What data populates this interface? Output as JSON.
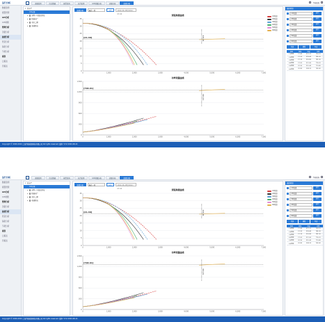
{
  "app": {
    "brand": "运行分析",
    "user": "华能能源"
  },
  "tabs": [
    "流量监测",
    "历史数据",
    "报警查询",
    "压力监测",
    "GIS地图分析",
    "流量分析",
    "曲线分析"
  ],
  "active_tab": 6,
  "sidebar": [
    {
      "label": "数据监测",
      "group": false
    },
    {
      "label": "报警管理",
      "group": false
    },
    {
      "label": "GIS分析",
      "group": true
    },
    {
      "label": "GIS地图",
      "group": false
    },
    {
      "label": "管网分析",
      "group": true
    },
    {
      "label": "流量分析",
      "group": false
    },
    {
      "label": "曲线分析",
      "group": true
    },
    {
      "label": "管道分析",
      "group": false
    },
    {
      "label": "漏损分析",
      "group": false
    },
    {
      "label": "节能分析",
      "group": false
    },
    {
      "label": "报表",
      "group": true
    },
    {
      "label": "日报表",
      "group": false
    },
    {
      "label": "月报表",
      "group": false
    }
  ],
  "tree": [
    {
      "label": "总水厂",
      "level": 0,
      "tw": "▾",
      "sel": false,
      "chk": false
    },
    {
      "label": "1#水源",
      "level": 1,
      "tw": "",
      "sel": true,
      "chk": false
    },
    {
      "label": "光明一号加压泵站",
      "level": 1,
      "tw": "▸",
      "sel": false,
      "chk": true
    },
    {
      "label": "新城水厂",
      "level": 1,
      "tw": "▸",
      "sel": false,
      "chk": true
    },
    {
      "label": "东区二期",
      "level": 1,
      "tw": "▸",
      "sel": false,
      "chk": true
    },
    {
      "label": "老城泵站",
      "level": 1,
      "tw": "▸",
      "sel": false,
      "chk": true
    }
  ],
  "toolbar": {
    "query": "曲线分析",
    "select_value": "最近一周",
    "compare": "对比",
    "date_range": "2022-06-28至2022-07-04"
  },
  "chart1": {
    "title": "流程泵能曲线",
    "label_left": "[21.40]",
    "label_right": "321.21",
    "x_ticks": [
      "0",
      "1,000",
      "2,000",
      "3,000",
      "4,000",
      "5,000",
      "6,000",
      "7,000"
    ],
    "y_ticks": [
      "35",
      "30",
      "25",
      "20",
      "15",
      "10",
      "5",
      "0"
    ]
  },
  "chart2": {
    "title": "功率流量曲线",
    "label_left": "[790.91]",
    "label_right": "321.21",
    "x_ticks": [
      "0",
      "1,000",
      "2,000",
      "3,000",
      "4,000",
      "5,000",
      "6,000",
      "7,000"
    ],
    "y_ticks": [
      "1,500",
      "1,200",
      "900",
      "600",
      "300",
      "0"
    ]
  },
  "legend": [
    "1#机组",
    "2#机组",
    "3#机组",
    "4#机组",
    "5#机组",
    "6#机组"
  ],
  "colors": {
    "accent": "#2a7ad6",
    "footer": "#1c5eb6",
    "series": [
      "#d63c3c",
      "#333333",
      "#5aa0d8",
      "#48b06a",
      "#e38bd8",
      "#e3b04b"
    ]
  },
  "right_panel": {
    "title": "选择机组",
    "meters": [
      {
        "name": "1#机组",
        "value": "运行"
      },
      {
        "name": "2#机组",
        "value": "运行"
      },
      {
        "name": "3#机组",
        "value": "运行"
      },
      {
        "name": "4#机组",
        "value": "运行"
      },
      {
        "name": "5#机组",
        "value": "运行"
      },
      {
        "name": "6#机组",
        "value": "运行"
      }
    ],
    "buttons": [
      "全选",
      "刷新",
      "导出"
    ],
    "table_headers": [
      "机组",
      "扬程",
      "流量",
      "功率"
    ],
    "table_rows": [
      [
        "1#机组",
        "21.40",
        "321.21",
        "790.91"
      ],
      [
        "2#机组",
        "21.20",
        "318.40",
        "785.30"
      ],
      [
        "3#机组",
        "21.10",
        "316.80",
        "781.50"
      ],
      [
        "4#机组",
        "21.00",
        "312.60",
        "776.20"
      ],
      [
        "5#机组",
        "20.90",
        "310.40",
        "770.80"
      ],
      [
        "6#机组",
        "20.80",
        "308.20",
        "765.40"
      ]
    ]
  },
  "footer": "Copyright © 2020-2024 上海华能能源科技有限公司 All rights reserved.   版本: V3.0   2024-06-11"
}
